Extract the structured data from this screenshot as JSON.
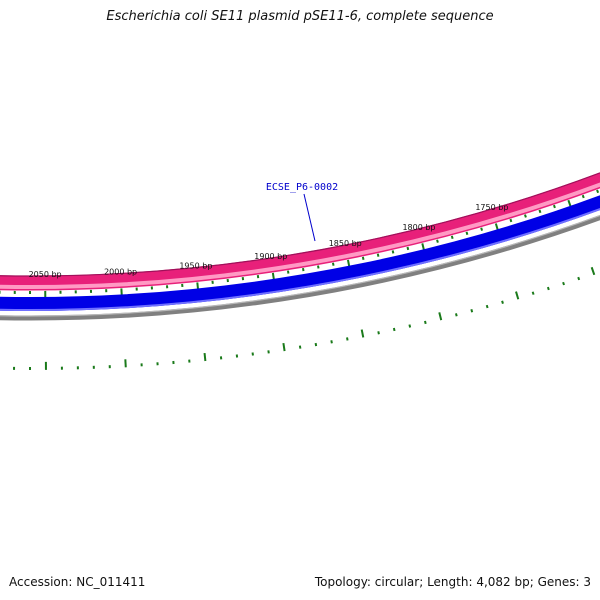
{
  "title": "Escherichia coli SE11 plasmid pSE11-6, complete sequence",
  "footer": {
    "accession": "Accession: NC_011411",
    "summary": "Topology: circular; Length: 4,082 bp; Genes: 3"
  },
  "map": {
    "length_bp": 4082,
    "tick_labels": [
      {
        "bp": 1750,
        "text": "1750 bp"
      },
      {
        "bp": 1800,
        "text": "1800 bp"
      },
      {
        "bp": 1850,
        "text": "1850 bp"
      },
      {
        "bp": 1900,
        "text": "1900 bp"
      },
      {
        "bp": 1950,
        "text": "1950 bp"
      },
      {
        "bp": 2000,
        "text": "2000 bp"
      },
      {
        "bp": 2050,
        "text": "2050 bp"
      }
    ],
    "gene_label": "ECSE_P6-0002",
    "colors": {
      "gene_track": "#e8207a",
      "gene_light": "#ff9ac4",
      "cds_track": "#0000e6",
      "cds_light": "#7070ff",
      "backbone": "#808080",
      "ticks": "#1a7a1a",
      "gene_text": "#0000cc"
    }
  }
}
